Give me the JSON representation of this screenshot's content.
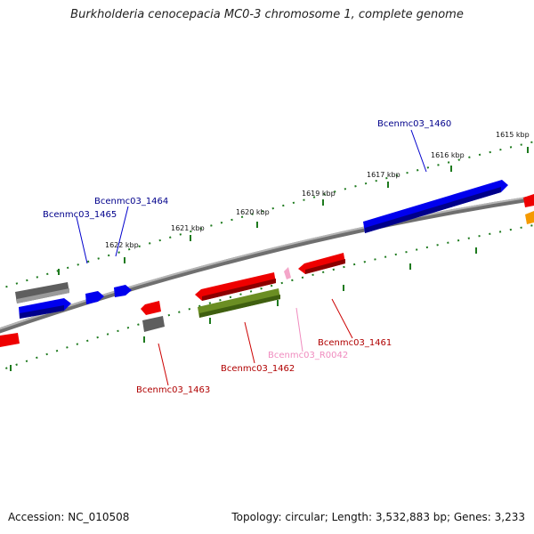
{
  "title": "Burkholderia cenocepacia MC0-3 chromosome 1, complete genome",
  "footer": {
    "accession_label": "Accession: NC_010508",
    "summary": "Topology: circular; Length: 3,532,883 bp; Genes: 3,233"
  },
  "ruler": {
    "unit": "kbp",
    "ticks": [
      "1615 kbp",
      "1616 kbp",
      "1617 kbp",
      "1619 kbp",
      "1620 kbp",
      "1621 kbp",
      "1622 kbp"
    ]
  },
  "colors": {
    "forward_gene": "#0000ee",
    "reverse_gene": "#ee0000",
    "pseudogene": "#5e5e5e",
    "rna_gene": "#6b8e23",
    "ncrna": "#f4a6c9",
    "partial_orange": "#f59a00",
    "backbone": "#888888",
    "tick": "#1e7a1e"
  },
  "genes": [
    {
      "name": "Bcenmc03_1460",
      "strand": "forward",
      "label_color": "#00008b"
    },
    {
      "name": "Bcenmc03_1461",
      "strand": "reverse",
      "label_color": "#b00000"
    },
    {
      "name": "Bcenmc03_1462",
      "strand": "reverse",
      "label_color": "#b00000"
    },
    {
      "name": "Bcenmc03_R0042",
      "strand": "reverse",
      "label_color": "#f08cbf"
    },
    {
      "name": "Bcenmc03_1463",
      "strand": "reverse",
      "label_color": "#b00000"
    },
    {
      "name": "Bcenmc03_1464",
      "strand": "forward",
      "label_color": "#00008b"
    },
    {
      "name": "Bcenmc03_1465",
      "strand": "forward",
      "label_color": "#00008b"
    }
  ]
}
